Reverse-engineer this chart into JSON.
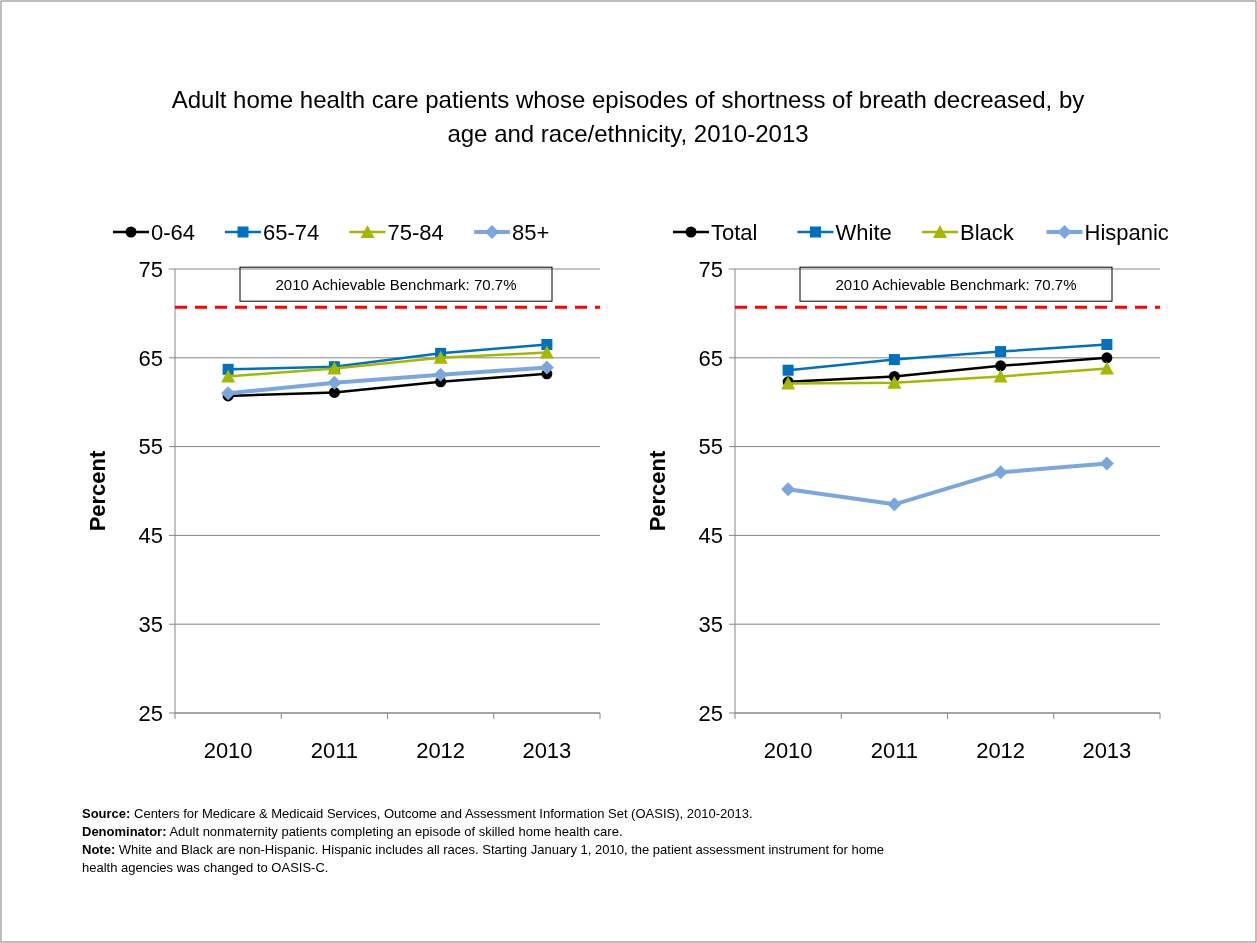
{
  "chart_data": [
    {
      "type": "line",
      "title": "Adult home health care patients whose episodes of shortness of breath decreased, by age and race/ethnicity, 2010-2013",
      "categories": [
        "2010",
        "2011",
        "2012",
        "2013"
      ],
      "ylabel": "Percent",
      "ylim": [
        25,
        75
      ],
      "yticks": [
        25,
        35,
        45,
        55,
        65,
        75
      ],
      "grid": "y",
      "legend": "top",
      "series": [
        {
          "name": "0-64",
          "color": "#000000",
          "marker": "circle",
          "values": [
            60.7,
            61.1,
            62.3,
            63.2
          ]
        },
        {
          "name": "65-74",
          "color": "#0070c0",
          "marker": "square",
          "values": [
            63.7,
            64.0,
            65.5,
            66.5
          ]
        },
        {
          "name": "75-84",
          "color": "#a5b800",
          "marker": "triangle",
          "values": [
            62.9,
            63.8,
            65.0,
            65.6
          ]
        },
        {
          "name": "85+",
          "color": "#7ba7e0",
          "marker": "diamond",
          "values": [
            61.0,
            62.2,
            63.1,
            63.9
          ]
        }
      ],
      "ref_lines": [
        {
          "axis": "y",
          "value": 70.7,
          "label": "2010 Achievable Benchmark: 70.7%",
          "color": "#ff0000",
          "line_style": "dashed"
        }
      ],
      "annotations": [
        "Source: Centers for Medicare & Medicaid Services, Outcome and Assessment Information Set (OASIS), 2010-2013.",
        "Denominator: Adult nonmaternity patients completing an episode of skilled home health care.",
        "Note: White and Black are non-Hispanic. Hispanic includes all races. Starting January 1, 2010, the patient assessment instrument for home health agencies was changed to OASIS-C."
      ]
    },
    {
      "type": "line",
      "categories": [
        "2010",
        "2011",
        "2012",
        "2013"
      ],
      "ylabel": "Percent",
      "ylim": [
        25,
        75
      ],
      "yticks": [
        25,
        35,
        45,
        55,
        65,
        75
      ],
      "grid": "y",
      "legend": "top",
      "series": [
        {
          "name": "Total",
          "color": "#000000",
          "marker": "circle",
          "values": [
            62.3,
            62.9,
            64.1,
            65.0
          ]
        },
        {
          "name": "White",
          "color": "#0070c0",
          "marker": "square",
          "values": [
            63.6,
            64.8,
            65.7,
            66.5
          ]
        },
        {
          "name": "Black",
          "color": "#a5b800",
          "marker": "triangle",
          "values": [
            62.1,
            62.2,
            62.9,
            63.8
          ]
        },
        {
          "name": "Hispanic",
          "color": "#7ba7e0",
          "marker": "diamond",
          "values": [
            50.2,
            48.5,
            52.1,
            53.1
          ]
        }
      ],
      "ref_lines": [
        {
          "axis": "y",
          "value": 70.7,
          "label": "2010 Achievable Benchmark: 70.7%",
          "color": "#ff0000",
          "line_style": "dashed"
        }
      ]
    }
  ]
}
